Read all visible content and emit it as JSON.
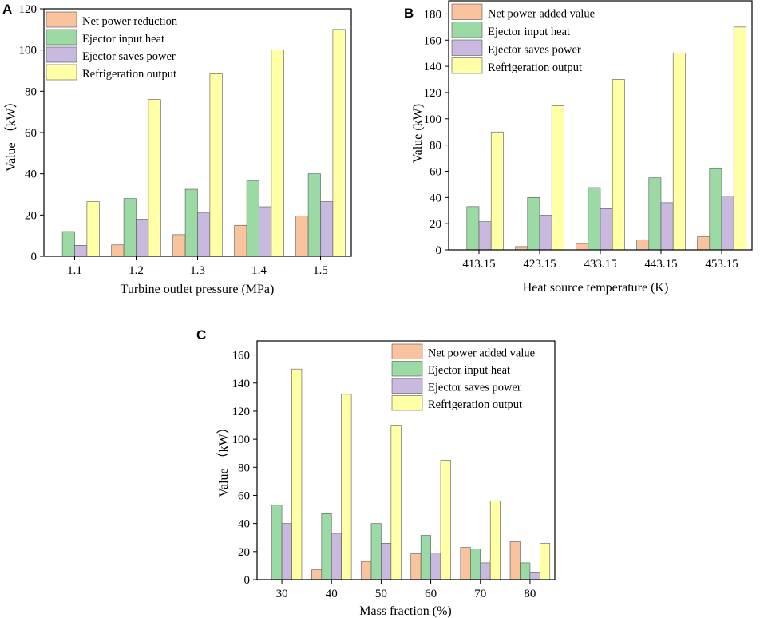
{
  "chart_data": [
    {
      "panel": "A",
      "type": "bar",
      "categories": [
        "1.1",
        "1.2",
        "1.3",
        "1.4",
        "1.5"
      ],
      "series": [
        {
          "name": "Net power reduction",
          "color": "#F9C39D",
          "values": [
            0,
            5.5,
            10.5,
            15,
            19.5
          ]
        },
        {
          "name": "Ejector input heat",
          "color": "#9BDAA5",
          "values": [
            12,
            28,
            32.5,
            36.5,
            40
          ]
        },
        {
          "name": "Ejector saves power",
          "color": "#C9B9DF",
          "values": [
            5.3,
            18,
            21,
            24,
            26.5
          ]
        },
        {
          "name": "Refrigeration output",
          "color": "#FFFFA6",
          "values": [
            26.5,
            76,
            88.5,
            100,
            110
          ]
        }
      ],
      "xlabel": "Turbine outlet pressure (MPa)",
      "ylabel": "Value （kW）",
      "ylim": [
        0,
        120
      ],
      "yticks": [
        0,
        20,
        40,
        60,
        80,
        100,
        120
      ],
      "legend": "top-left"
    },
    {
      "panel": "B",
      "type": "bar",
      "categories": [
        "413.15",
        "423.15",
        "433.15",
        "443.15",
        "453.15"
      ],
      "series": [
        {
          "name": "Net power added value",
          "color": "#F9C39D",
          "values": [
            0,
            2.5,
            5,
            7.5,
            10
          ]
        },
        {
          "name": "Ejector input heat",
          "color": "#9BDAA5",
          "values": [
            33,
            40,
            47.5,
            55,
            62
          ]
        },
        {
          "name": "Ejector saves power",
          "color": "#C9B9DF",
          "values": [
            21.5,
            26.5,
            31.5,
            36,
            41
          ]
        },
        {
          "name": "Refrigeration output",
          "color": "#FFFFA6",
          "values": [
            90,
            110,
            130,
            150,
            170
          ]
        }
      ],
      "xlabel": "Heat source temperature (K)",
      "ylabel": "Value (kW)",
      "ylim": [
        0,
        190
      ],
      "yticks": [
        0,
        20,
        40,
        60,
        80,
        100,
        120,
        140,
        160,
        180
      ],
      "legend": "top-left"
    },
    {
      "panel": "C",
      "type": "bar",
      "categories": [
        "30",
        "40",
        "50",
        "60",
        "70",
        "80"
      ],
      "series": [
        {
          "name": "Net power added value",
          "color": "#F9C39D",
          "values": [
            0,
            7,
            13,
            18.5,
            23,
            27
          ]
        },
        {
          "name": "Ejector input heat",
          "color": "#9BDAA5",
          "values": [
            53,
            47,
            40,
            31.5,
            22,
            12
          ]
        },
        {
          "name": "Ejector saves power",
          "color": "#C9B9DF",
          "values": [
            40,
            33,
            26,
            19,
            12,
            5
          ]
        },
        {
          "name": "Refrigeration output",
          "color": "#FFFFA6",
          "values": [
            150,
            132,
            110,
            85,
            56,
            26
          ]
        }
      ],
      "xlabel": "Mass fraction (%)",
      "ylabel": "Value （kW）",
      "ylim": [
        0,
        170
      ],
      "yticks": [
        0,
        20,
        40,
        60,
        80,
        100,
        120,
        140,
        160
      ],
      "legend": "top-right"
    }
  ]
}
